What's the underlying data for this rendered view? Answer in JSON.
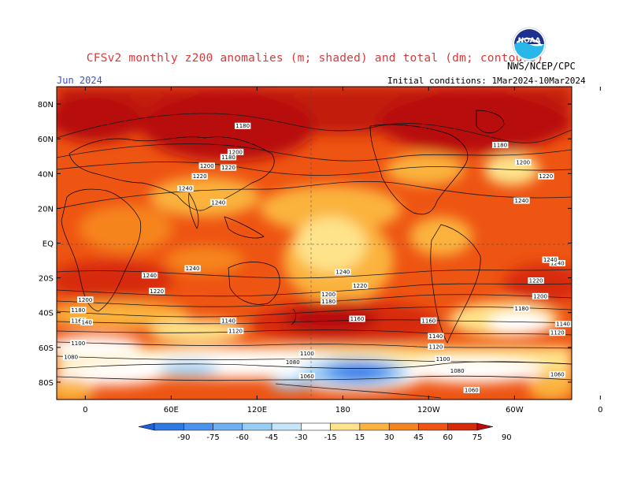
{
  "header": {
    "title": "CFSv2 monthly z200 anomalies (m; shaded) and total (dm; contours)",
    "month": "Jun 2024",
    "initial_conditions": "Initial conditions: 1Mar2024-10Mar2024",
    "agency": "NWS/NCEP/CPC",
    "logo_text": "NOAA"
  },
  "axes": {
    "lat_ticks": [
      "80N",
      "60N",
      "40N",
      "20N",
      "EQ",
      "20S",
      "40S",
      "60S",
      "80S"
    ],
    "lon_ticks": [
      "0",
      "60E",
      "120E",
      "180",
      "120W",
      "60W",
      "0"
    ]
  },
  "colorbar": {
    "labels": [
      "-90",
      "-75",
      "-60",
      "-45",
      "-30",
      "-15",
      "15",
      "30",
      "45",
      "60",
      "75",
      "90"
    ],
    "colors": [
      "#1f5fd8",
      "#2d79e6",
      "#4a92ee",
      "#6fb0f2",
      "#98cdf6",
      "#c4e6f8",
      "#ffffff",
      "#fee38a",
      "#fbb33e",
      "#f6841e",
      "#ee5412",
      "#d72a0a",
      "#b80b0b"
    ]
  },
  "contours": {
    "labels": [
      {
        "text": "1180",
        "lon": 110,
        "lat": 67
      },
      {
        "text": "1200",
        "lon": 105,
        "lat": 52
      },
      {
        "text": "1220",
        "lon": 100,
        "lat": 43
      },
      {
        "text": "1240",
        "lon": 93,
        "lat": 23
      },
      {
        "text": "1180",
        "lon": 100,
        "lat": 49
      },
      {
        "text": "1200",
        "lon": 85,
        "lat": 44
      },
      {
        "text": "1220",
        "lon": 80,
        "lat": 38
      },
      {
        "text": "1240",
        "lon": 70,
        "lat": 31
      },
      {
        "text": "1180",
        "lon": -70,
        "lat": 56
      },
      {
        "text": "1200",
        "lon": -54,
        "lat": 46
      },
      {
        "text": "1220",
        "lon": -38,
        "lat": 38
      },
      {
        "text": "1240",
        "lon": -55,
        "lat": 24
      },
      {
        "text": "1240",
        "lon": -30,
        "lat": -12
      },
      {
        "text": "1240",
        "lon": 75,
        "lat": -15
      },
      {
        "text": "1220",
        "lon": 50,
        "lat": -28
      },
      {
        "text": "1240",
        "lon": 45,
        "lat": -19
      },
      {
        "text": "1200",
        "lon": 0,
        "lat": -33
      },
      {
        "text": "1180",
        "lon": -5,
        "lat": -39
      },
      {
        "text": "1160",
        "lon": -5,
        "lat": -45
      },
      {
        "text": "1140",
        "lon": -26,
        "lat": -47
      },
      {
        "text": "1120",
        "lon": -30,
        "lat": -52
      },
      {
        "text": "1100",
        "lon": -5,
        "lat": -58
      },
      {
        "text": "1080",
        "lon": -10,
        "lat": -66
      },
      {
        "text": "1060",
        "lon": -30,
        "lat": -76
      },
      {
        "text": "1140",
        "lon": -260,
        "lat": -45
      },
      {
        "text": "1120",
        "lon": -255,
        "lat": -51
      },
      {
        "text": "1160",
        "lon": -170,
        "lat": -44
      },
      {
        "text": "1180",
        "lon": -190,
        "lat": -34
      },
      {
        "text": "1200",
        "lon": -190,
        "lat": -30
      },
      {
        "text": "1220",
        "lon": -168,
        "lat": -25
      },
      {
        "text": "1240",
        "lon": -180,
        "lat": -17
      },
      {
        "text": "1100",
        "lon": -205,
        "lat": -64
      },
      {
        "text": "1080",
        "lon": -215,
        "lat": -69
      },
      {
        "text": "1060",
        "lon": -205,
        "lat": -77
      },
      {
        "text": "1160",
        "lon": -120,
        "lat": -45
      },
      {
        "text": "1140",
        "lon": -115,
        "lat": -54
      },
      {
        "text": "1120",
        "lon": -115,
        "lat": -60
      },
      {
        "text": "1100",
        "lon": -110,
        "lat": -67
      },
      {
        "text": "1080",
        "lon": -100,
        "lat": -74
      },
      {
        "text": "1060",
        "lon": -90,
        "lat": -85
      },
      {
        "text": "1240",
        "lon": -35,
        "lat": -10
      },
      {
        "text": "1220",
        "lon": -45,
        "lat": -22
      },
      {
        "text": "1200",
        "lon": -42,
        "lat": -31
      },
      {
        "text": "1180",
        "lon": -55,
        "lat": -38
      },
      {
        "text": "140",
        "lon": -359,
        "lat": -46
      }
    ]
  }
}
